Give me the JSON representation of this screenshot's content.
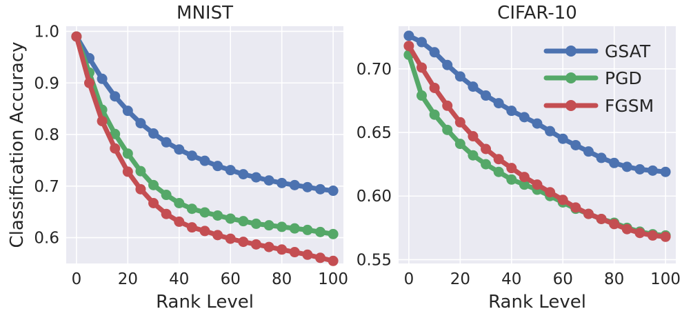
{
  "figure": {
    "ylabel": "Classification Accuracy"
  },
  "legend": {
    "items": [
      {
        "label": "GSAT",
        "color": "#4C72B0"
      },
      {
        "label": "PGD",
        "color": "#55A868"
      },
      {
        "label": "FGSM",
        "color": "#C44E52"
      }
    ],
    "placement": "top-right of right panel"
  },
  "chart_data": [
    {
      "type": "line",
      "title": "MNIST",
      "xlabel": "Rank Level",
      "ylabel": "Classification Accuracy",
      "x": [
        0,
        5,
        10,
        15,
        20,
        25,
        30,
        35,
        40,
        45,
        50,
        55,
        60,
        65,
        70,
        75,
        80,
        85,
        90,
        95,
        100
      ],
      "xlim": [
        -4,
        104
      ],
      "ylim": [
        0.55,
        1.01
      ],
      "xticks": [
        0,
        20,
        40,
        60,
        80,
        100
      ],
      "yticks": [
        0.6,
        0.7,
        0.8,
        0.9,
        1.0
      ],
      "xtick_labels": [
        "0",
        "20",
        "40",
        "60",
        "80",
        "100"
      ],
      "ytick_labels": [
        "0.6",
        "0.7",
        "0.8",
        "0.9",
        "1.0"
      ],
      "grid": true,
      "series": [
        {
          "name": "GSAT",
          "color": "#4C72B0",
          "values": [
            0.99,
            0.948,
            0.908,
            0.874,
            0.846,
            0.822,
            0.802,
            0.785,
            0.771,
            0.759,
            0.749,
            0.739,
            0.731,
            0.723,
            0.717,
            0.711,
            0.706,
            0.702,
            0.698,
            0.694,
            0.691
          ]
        },
        {
          "name": "PGD",
          "color": "#55A868",
          "values": [
            0.99,
            0.92,
            0.848,
            0.801,
            0.763,
            0.729,
            0.702,
            0.683,
            0.667,
            0.656,
            0.649,
            0.643,
            0.637,
            0.632,
            0.627,
            0.624,
            0.621,
            0.618,
            0.615,
            0.611,
            0.607
          ]
        },
        {
          "name": "FGSM",
          "color": "#C44E52",
          "values": [
            0.99,
            0.9,
            0.826,
            0.773,
            0.728,
            0.694,
            0.667,
            0.646,
            0.631,
            0.62,
            0.613,
            0.605,
            0.598,
            0.592,
            0.587,
            0.582,
            0.577,
            0.572,
            0.567,
            0.561,
            0.555
          ]
        }
      ]
    },
    {
      "type": "line",
      "title": "CIFAR-10",
      "xlabel": "Rank Level",
      "ylabel": "",
      "x": [
        0,
        5,
        10,
        15,
        20,
        25,
        30,
        35,
        40,
        45,
        50,
        55,
        60,
        65,
        70,
        75,
        80,
        85,
        90,
        95,
        100
      ],
      "xlim": [
        -4,
        104
      ],
      "ylim": [
        0.547,
        0.7335
      ],
      "xticks": [
        0,
        20,
        40,
        60,
        80,
        100
      ],
      "yticks": [
        0.55,
        0.6,
        0.65,
        0.7
      ],
      "xtick_labels": [
        "0",
        "20",
        "40",
        "60",
        "80",
        "100"
      ],
      "ytick_labels": [
        "0.55",
        "0.60",
        "0.65",
        "0.70"
      ],
      "grid": true,
      "series": [
        {
          "name": "GSAT",
          "color": "#4C72B0",
          "values": [
            0.726,
            0.721,
            0.713,
            0.703,
            0.694,
            0.686,
            0.679,
            0.673,
            0.667,
            0.662,
            0.657,
            0.651,
            0.645,
            0.64,
            0.635,
            0.63,
            0.626,
            0.623,
            0.621,
            0.62,
            0.619
          ]
        },
        {
          "name": "PGD",
          "color": "#55A868",
          "values": [
            0.711,
            0.679,
            0.664,
            0.652,
            0.641,
            0.632,
            0.625,
            0.619,
            0.613,
            0.609,
            0.605,
            0.6,
            0.595,
            0.59,
            0.586,
            0.582,
            0.579,
            0.575,
            0.572,
            0.57,
            0.569
          ]
        },
        {
          "name": "FGSM",
          "color": "#C44E52",
          "values": [
            0.718,
            0.701,
            0.685,
            0.671,
            0.658,
            0.647,
            0.637,
            0.629,
            0.622,
            0.615,
            0.609,
            0.603,
            0.597,
            0.591,
            0.586,
            0.582,
            0.578,
            0.574,
            0.571,
            0.569,
            0.568
          ]
        }
      ]
    }
  ]
}
